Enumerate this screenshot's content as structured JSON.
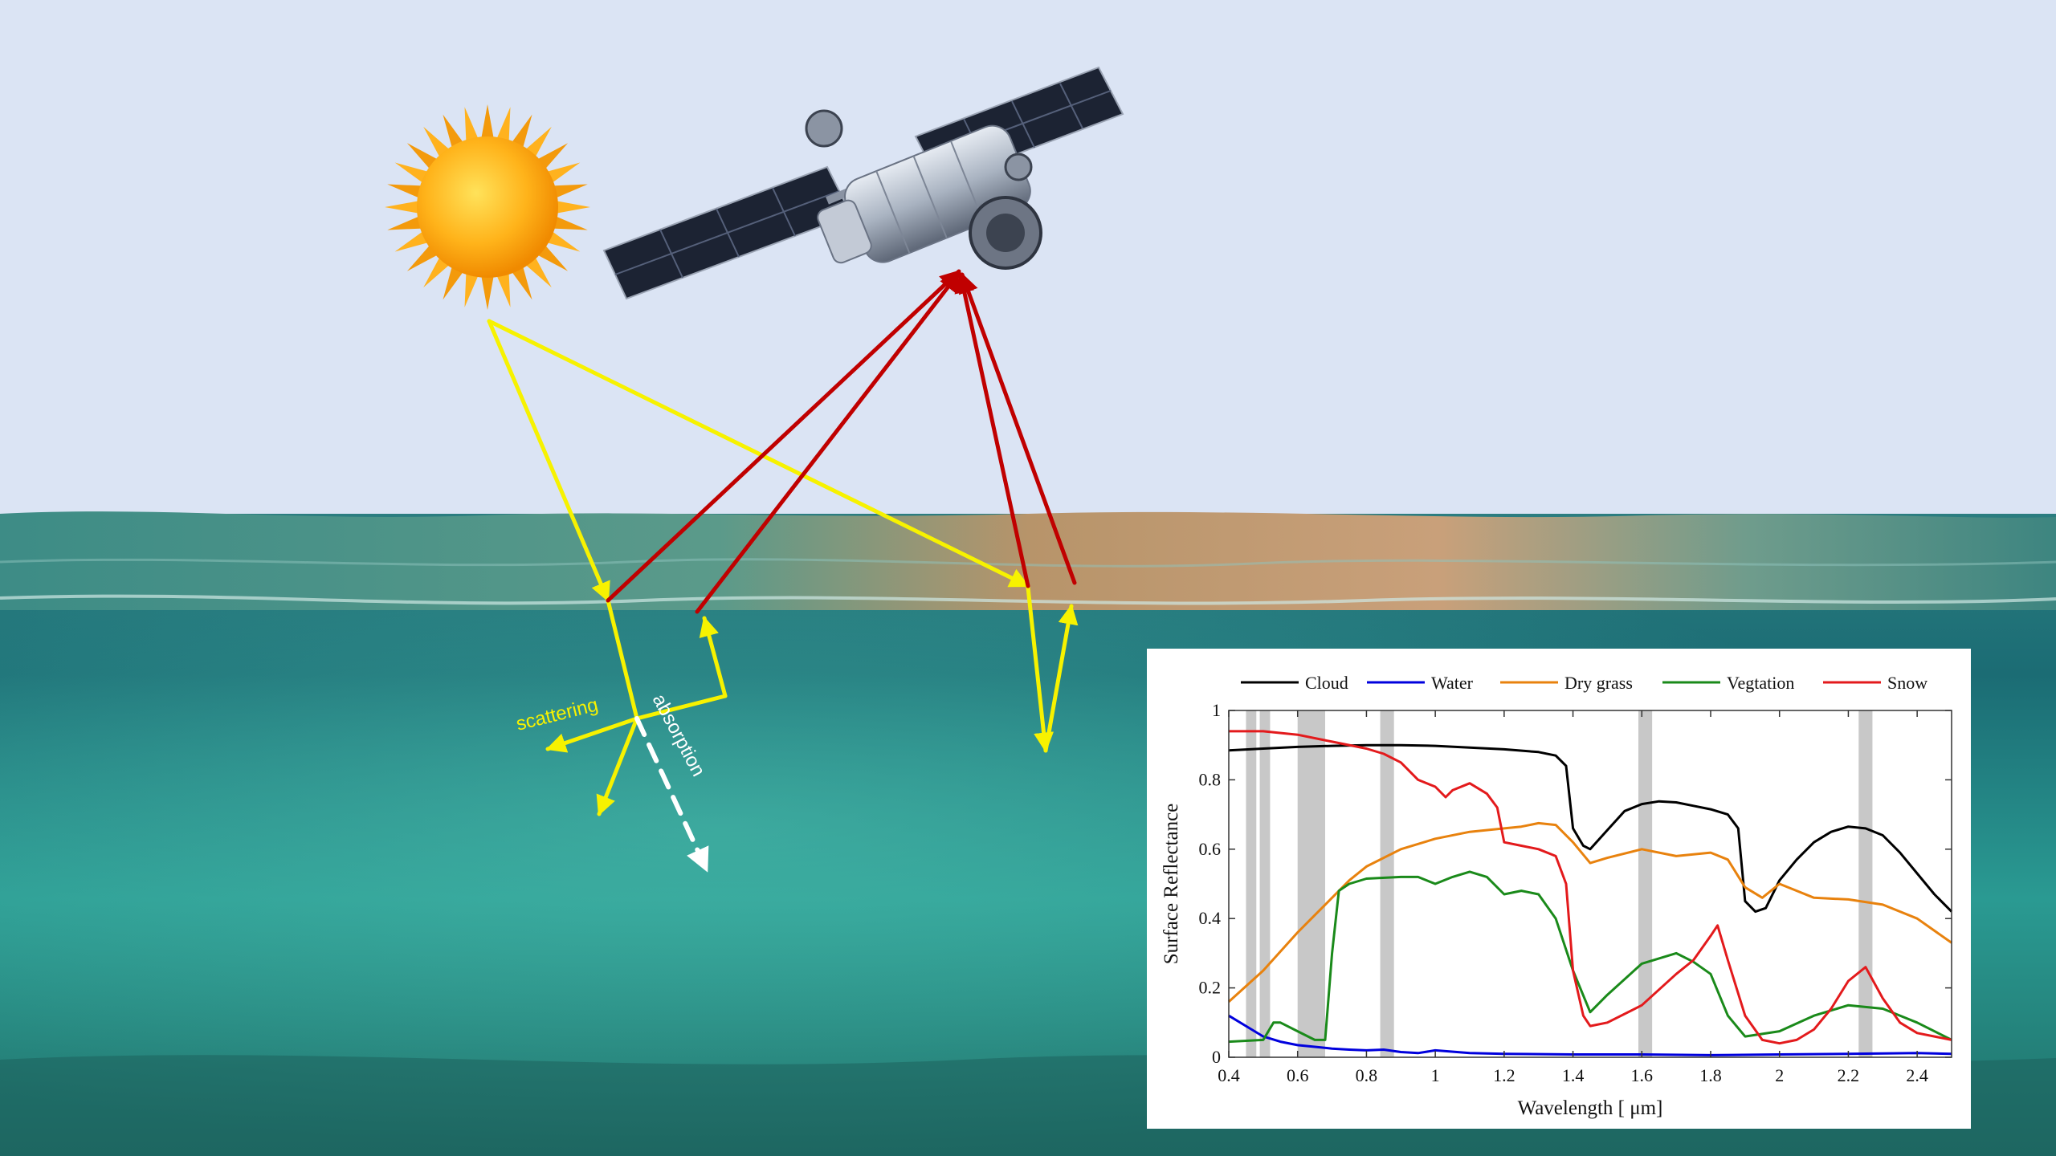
{
  "annotations": {
    "scattering": "scattering",
    "absorption": "absorption"
  },
  "colors": {
    "sky": "#dbe4f4",
    "sun_ray": "#f7f200",
    "reflected_ray": "#c00000",
    "absorption_arrow": "#ffffff",
    "scattering_text": "#f7f200"
  },
  "icons": {
    "sun": "sun-icon",
    "satellite": "satellite-icon"
  },
  "chart_data": {
    "type": "line",
    "xlabel": "Wavelength [ μm]",
    "ylabel": "Surface Reflectance",
    "xlim": [
      0.4,
      2.5
    ],
    "ylim": [
      0,
      1
    ],
    "xticks": [
      "0.4",
      "0.6",
      "0.8",
      "1",
      "1.2",
      "1.4",
      "1.6",
      "1.8",
      "2",
      "2.2",
      "2.4"
    ],
    "yticks": [
      "0",
      "0.2",
      "0.4",
      "0.6",
      "0.8",
      "1"
    ],
    "legend_position": "top",
    "grid": false,
    "shaded_bands": [
      [
        0.45,
        0.48
      ],
      [
        0.49,
        0.52
      ],
      [
        0.6,
        0.68
      ],
      [
        0.84,
        0.88
      ],
      [
        1.59,
        1.63
      ],
      [
        2.23,
        2.27
      ]
    ],
    "series": [
      {
        "name": "Cloud",
        "color": "#000000",
        "x": [
          0.4,
          0.5,
          0.6,
          0.7,
          0.8,
          0.9,
          1.0,
          1.1,
          1.2,
          1.3,
          1.35,
          1.38,
          1.4,
          1.43,
          1.45,
          1.5,
          1.55,
          1.6,
          1.65,
          1.7,
          1.75,
          1.8,
          1.85,
          1.88,
          1.9,
          1.93,
          1.96,
          2.0,
          2.05,
          2.1,
          2.15,
          2.2,
          2.25,
          2.3,
          2.35,
          2.4,
          2.45,
          2.5
        ],
        "y": [
          0.885,
          0.89,
          0.895,
          0.898,
          0.9,
          0.9,
          0.898,
          0.893,
          0.888,
          0.88,
          0.87,
          0.84,
          0.66,
          0.61,
          0.6,
          0.655,
          0.71,
          0.73,
          0.738,
          0.735,
          0.725,
          0.715,
          0.7,
          0.66,
          0.45,
          0.42,
          0.43,
          0.51,
          0.57,
          0.62,
          0.65,
          0.665,
          0.66,
          0.64,
          0.59,
          0.53,
          0.47,
          0.42
        ]
      },
      {
        "name": "Water",
        "color": "#0000dd",
        "x": [
          0.4,
          0.45,
          0.5,
          0.55,
          0.6,
          0.65,
          0.7,
          0.75,
          0.8,
          0.85,
          0.9,
          0.95,
          1.0,
          1.1,
          1.2,
          1.4,
          1.6,
          1.8,
          2.0,
          2.2,
          2.4,
          2.5
        ],
        "y": [
          0.12,
          0.09,
          0.06,
          0.045,
          0.035,
          0.03,
          0.025,
          0.022,
          0.02,
          0.022,
          0.015,
          0.012,
          0.02,
          0.012,
          0.01,
          0.008,
          0.008,
          0.006,
          0.008,
          0.01,
          0.012,
          0.01
        ]
      },
      {
        "name": "Dry grass",
        "color": "#e8820e",
        "x": [
          0.4,
          0.5,
          0.6,
          0.7,
          0.75,
          0.8,
          0.9,
          1.0,
          1.1,
          1.2,
          1.25,
          1.3,
          1.35,
          1.4,
          1.45,
          1.5,
          1.6,
          1.7,
          1.8,
          1.85,
          1.9,
          1.95,
          2.0,
          2.05,
          2.1,
          2.2,
          2.3,
          2.4,
          2.5
        ],
        "y": [
          0.16,
          0.25,
          0.36,
          0.46,
          0.51,
          0.55,
          0.6,
          0.63,
          0.65,
          0.66,
          0.665,
          0.675,
          0.67,
          0.62,
          0.56,
          0.575,
          0.6,
          0.58,
          0.59,
          0.57,
          0.49,
          0.46,
          0.5,
          0.48,
          0.46,
          0.455,
          0.44,
          0.4,
          0.33
        ]
      },
      {
        "name": "Vegtation",
        "color": "#1a8a1a",
        "x": [
          0.4,
          0.5,
          0.53,
          0.55,
          0.6,
          0.65,
          0.68,
          0.7,
          0.72,
          0.75,
          0.8,
          0.9,
          0.95,
          1.0,
          1.05,
          1.1,
          1.15,
          1.2,
          1.25,
          1.3,
          1.35,
          1.4,
          1.45,
          1.5,
          1.6,
          1.7,
          1.75,
          1.8,
          1.85,
          1.9,
          2.0,
          2.1,
          2.2,
          2.3,
          2.4,
          2.5
        ],
        "y": [
          0.045,
          0.05,
          0.1,
          0.1,
          0.075,
          0.05,
          0.05,
          0.3,
          0.48,
          0.5,
          0.515,
          0.52,
          0.52,
          0.5,
          0.52,
          0.535,
          0.52,
          0.47,
          0.48,
          0.47,
          0.4,
          0.25,
          0.13,
          0.18,
          0.27,
          0.3,
          0.275,
          0.24,
          0.12,
          0.06,
          0.075,
          0.12,
          0.15,
          0.14,
          0.1,
          0.05
        ]
      },
      {
        "name": "Snow",
        "color": "#e31a1c",
        "x": [
          0.4,
          0.5,
          0.6,
          0.7,
          0.8,
          0.85,
          0.9,
          0.95,
          1.0,
          1.03,
          1.05,
          1.1,
          1.15,
          1.18,
          1.2,
          1.25,
          1.3,
          1.35,
          1.38,
          1.4,
          1.43,
          1.45,
          1.5,
          1.6,
          1.7,
          1.75,
          1.8,
          1.82,
          1.85,
          1.9,
          1.95,
          2.0,
          2.05,
          2.1,
          2.15,
          2.2,
          2.25,
          2.3,
          2.35,
          2.4,
          2.5
        ],
        "y": [
          0.94,
          0.94,
          0.93,
          0.91,
          0.89,
          0.875,
          0.85,
          0.8,
          0.78,
          0.75,
          0.77,
          0.79,
          0.76,
          0.72,
          0.62,
          0.61,
          0.6,
          0.58,
          0.5,
          0.25,
          0.12,
          0.09,
          0.1,
          0.15,
          0.24,
          0.28,
          0.35,
          0.38,
          0.28,
          0.12,
          0.05,
          0.04,
          0.05,
          0.08,
          0.14,
          0.22,
          0.26,
          0.17,
          0.1,
          0.07,
          0.05
        ]
      }
    ]
  }
}
